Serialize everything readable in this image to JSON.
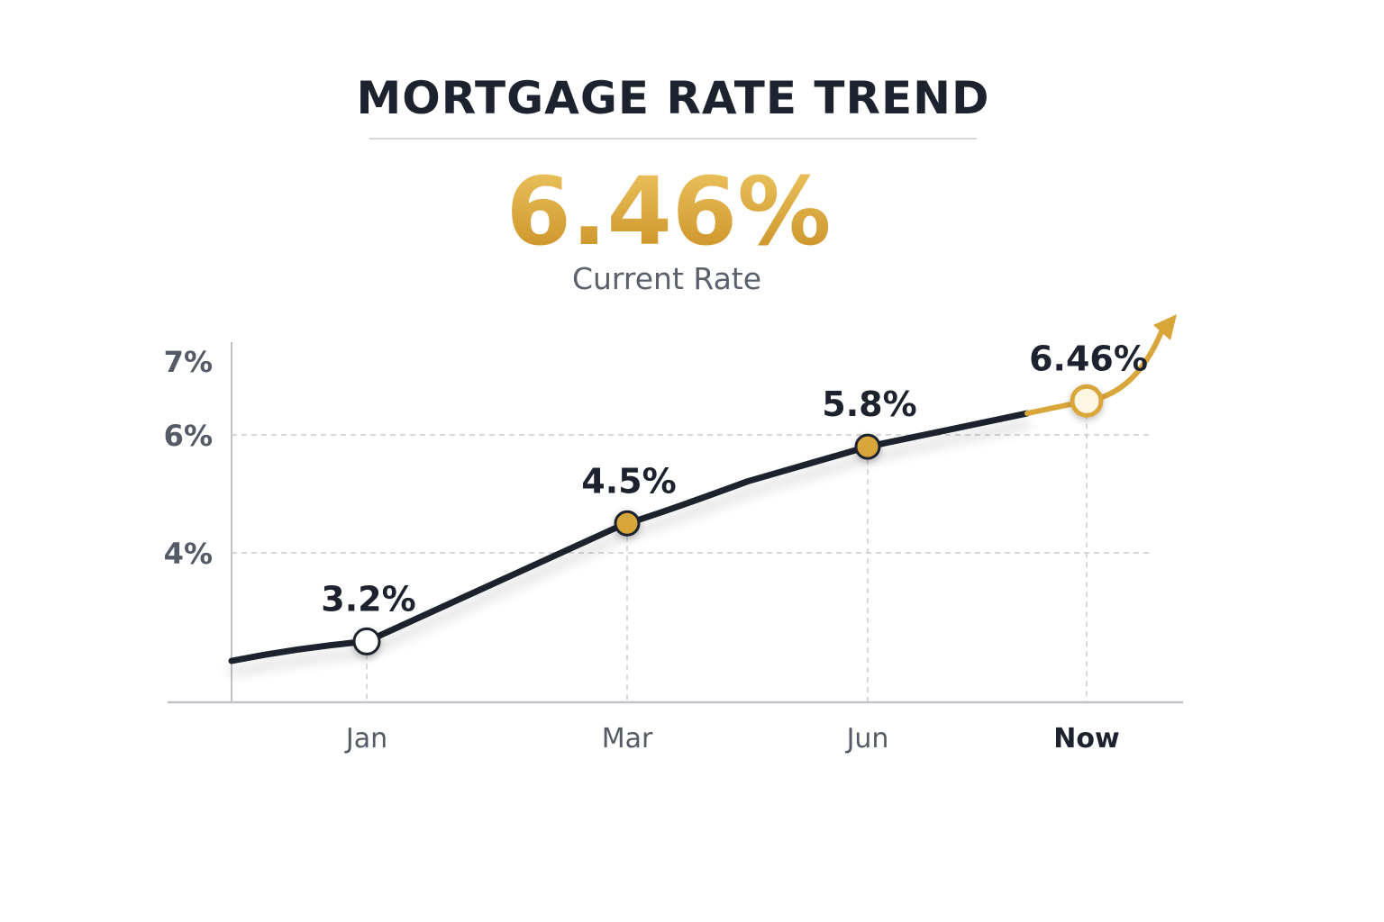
{
  "chart_data": {
    "type": "line",
    "title": "MORTGAGE RATE TREND",
    "headline": {
      "value": "6.46%",
      "label": "Current Rate"
    },
    "y_ticks": [
      {
        "value": 4,
        "label": "4%"
      },
      {
        "value": 6,
        "label": "6%"
      },
      {
        "value": 7,
        "label": "7%"
      }
    ],
    "points": [
      {
        "x": "Jan",
        "y": 3.2,
        "label": "3.2%"
      },
      {
        "x": "Mar",
        "y": 4.5,
        "label": "4.5%"
      },
      {
        "x": "Jun",
        "y": 5.8,
        "label": "5.8%"
      },
      {
        "x": "Now",
        "y": 6.46,
        "label": "6.46%"
      }
    ],
    "grid": true,
    "trend_arrow": true,
    "colors": {
      "line": "#1d232e",
      "accent": "#d9a63a",
      "grid": "#c9ccd1"
    }
  }
}
